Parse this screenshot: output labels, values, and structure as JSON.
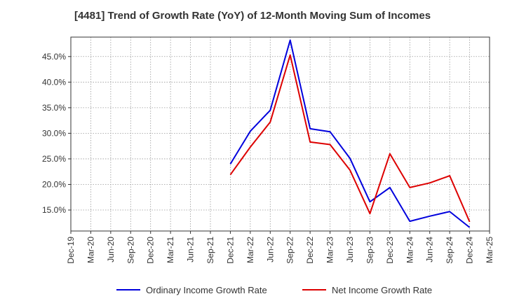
{
  "chart_data": {
    "type": "line",
    "title": "[4481]  Trend of Growth Rate (YoY) of 12-Month Moving Sum of Incomes",
    "xlabel": "",
    "ylabel": "",
    "categories": [
      "Dec-19",
      "Mar-20",
      "Jun-20",
      "Sep-20",
      "Dec-20",
      "Mar-21",
      "Jun-21",
      "Sep-21",
      "Dec-21",
      "Mar-22",
      "Jun-22",
      "Sep-22",
      "Dec-22",
      "Mar-23",
      "Jun-23",
      "Sep-23",
      "Dec-23",
      "Mar-24",
      "Jun-24",
      "Sep-24",
      "Dec-24",
      "Mar-25"
    ],
    "y_ticks": [
      15,
      20,
      25,
      30,
      35,
      40,
      45
    ],
    "y_tick_labels": [
      "15.0%",
      "20.0%",
      "25.0%",
      "30.0%",
      "35.0%",
      "40.0%",
      "45.0%"
    ],
    "ylim": [
      10.9,
      48.8
    ],
    "grid": true,
    "legend_position": "bottom",
    "series": [
      {
        "name": "Ordinary Income Growth Rate",
        "color": "#0000dd",
        "values": [
          null,
          null,
          null,
          null,
          null,
          null,
          null,
          null,
          24.0,
          30.4,
          34.5,
          48.2,
          30.9,
          30.3,
          25.1,
          16.6,
          19.4,
          12.8,
          13.8,
          14.7,
          11.6,
          null
        ]
      },
      {
        "name": "Net Income Growth Rate",
        "color": "#dd0000",
        "values": [
          null,
          null,
          null,
          null,
          null,
          null,
          null,
          null,
          21.9,
          27.3,
          32.2,
          45.3,
          28.3,
          27.8,
          22.8,
          14.3,
          26.0,
          19.4,
          20.3,
          21.7,
          12.7,
          null
        ]
      }
    ]
  }
}
